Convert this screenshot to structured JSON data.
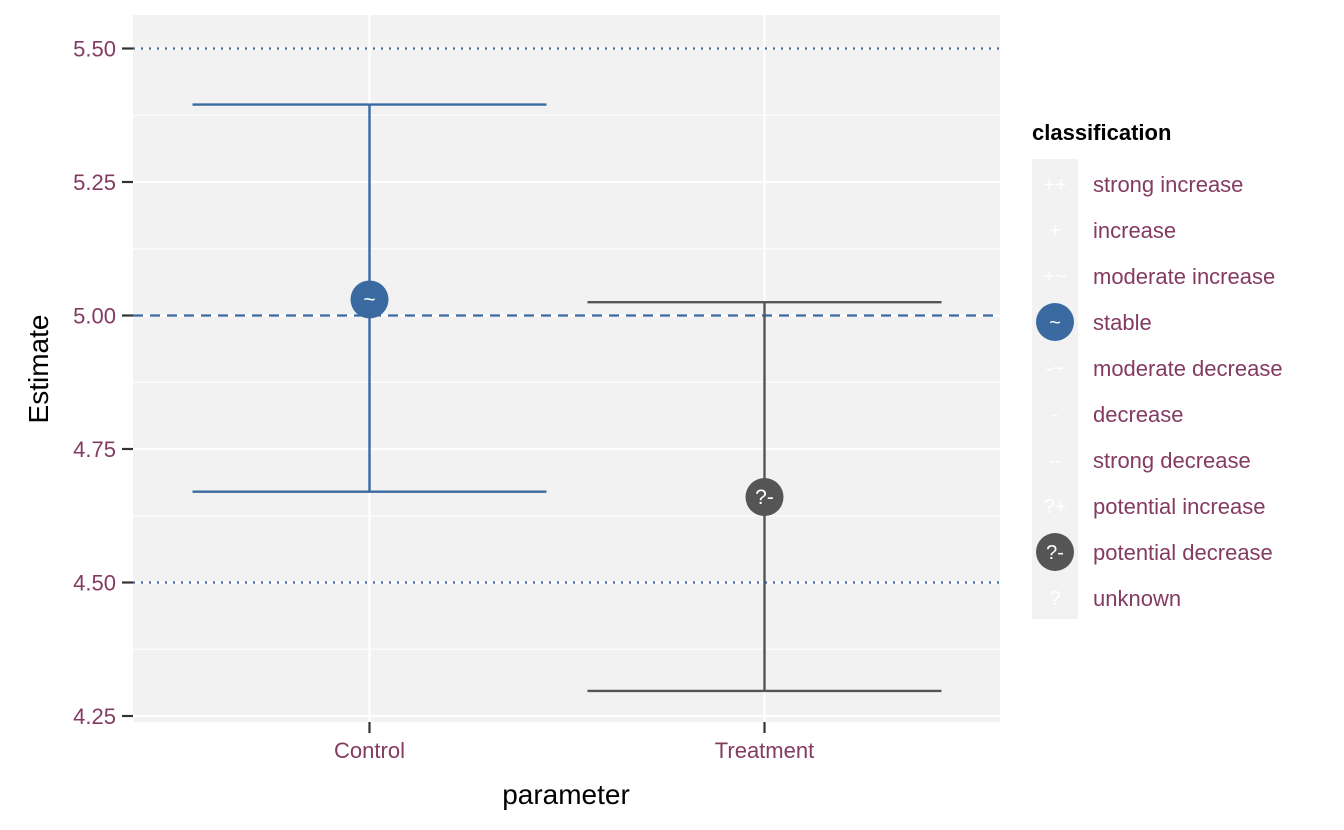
{
  "chart_data": {
    "type": "errorbar",
    "xlabel": "parameter",
    "ylabel": "Estimate",
    "categories": [
      "Control",
      "Treatment"
    ],
    "ylim": [
      4.25,
      5.56
    ],
    "yticks": [
      4.25,
      4.5,
      4.75,
      5.0,
      5.25,
      5.5
    ],
    "ytick_labels": [
      "4.25",
      "4.50",
      "4.75",
      "5.00",
      "5.25",
      "5.50"
    ],
    "reference_lines": [
      {
        "y": 5.5,
        "style": "dotted",
        "color": "#3A6AA0"
      },
      {
        "y": 5.0,
        "style": "dashed",
        "color": "#3A6AA0"
      },
      {
        "y": 4.5,
        "style": "dotted",
        "color": "#3A6AA0"
      }
    ],
    "points": [
      {
        "category": "Control",
        "estimate": 5.03,
        "lower": 4.67,
        "upper": 5.395,
        "classification": "stable",
        "symbol": "~",
        "color": "#3A6AA0"
      },
      {
        "category": "Treatment",
        "estimate": 4.66,
        "lower": 4.297,
        "upper": 5.025,
        "classification": "potential decrease",
        "symbol": "?-",
        "color": "#555555"
      }
    ],
    "grid": true,
    "panel_background": "#F2F2F2",
    "legend": {
      "title": "classification",
      "position": "right",
      "entries": [
        {
          "label": "strong increase",
          "symbol": "++",
          "color": null
        },
        {
          "label": "increase",
          "symbol": "+",
          "color": null
        },
        {
          "label": "moderate increase",
          "symbol": "+~",
          "color": null
        },
        {
          "label": "stable",
          "symbol": "~",
          "color": "#3A6AA0"
        },
        {
          "label": "moderate decrease",
          "symbol": "-~",
          "color": null
        },
        {
          "label": "decrease",
          "symbol": "-",
          "color": null
        },
        {
          "label": "strong decrease",
          "symbol": "--",
          "color": null
        },
        {
          "label": "potential increase",
          "symbol": "?+",
          "color": null
        },
        {
          "label": "potential decrease",
          "symbol": "?-",
          "color": "#555555"
        },
        {
          "label": "unknown",
          "symbol": "?",
          "color": null
        }
      ]
    }
  }
}
